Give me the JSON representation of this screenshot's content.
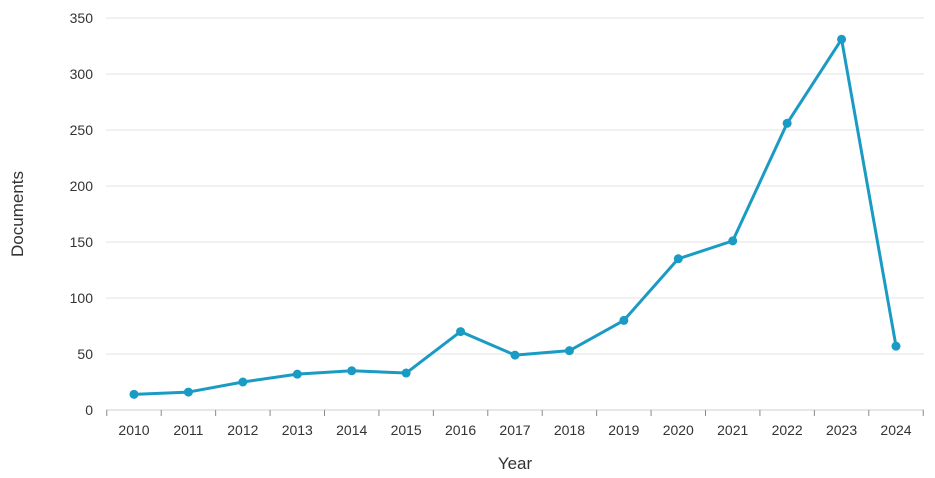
{
  "chart_data": {
    "type": "line",
    "title": "",
    "xlabel": "Year",
    "ylabel": "Documents",
    "x": [
      "2010",
      "2011",
      "2012",
      "2013",
      "2014",
      "2015",
      "2016",
      "2017",
      "2018",
      "2019",
      "2020",
      "2021",
      "2022",
      "2023",
      "2024"
    ],
    "series": [
      {
        "values": [
          14,
          16,
          25,
          32,
          35,
          33,
          70,
          49,
          53,
          80,
          135,
          151,
          256,
          331,
          57
        ],
        "color": "#1a9bc4"
      }
    ],
    "ylim": [
      0,
      350
    ],
    "yticks": [
      0,
      50,
      100,
      150,
      200,
      250,
      300,
      350
    ],
    "grid": "horizontal",
    "legend": "none"
  }
}
